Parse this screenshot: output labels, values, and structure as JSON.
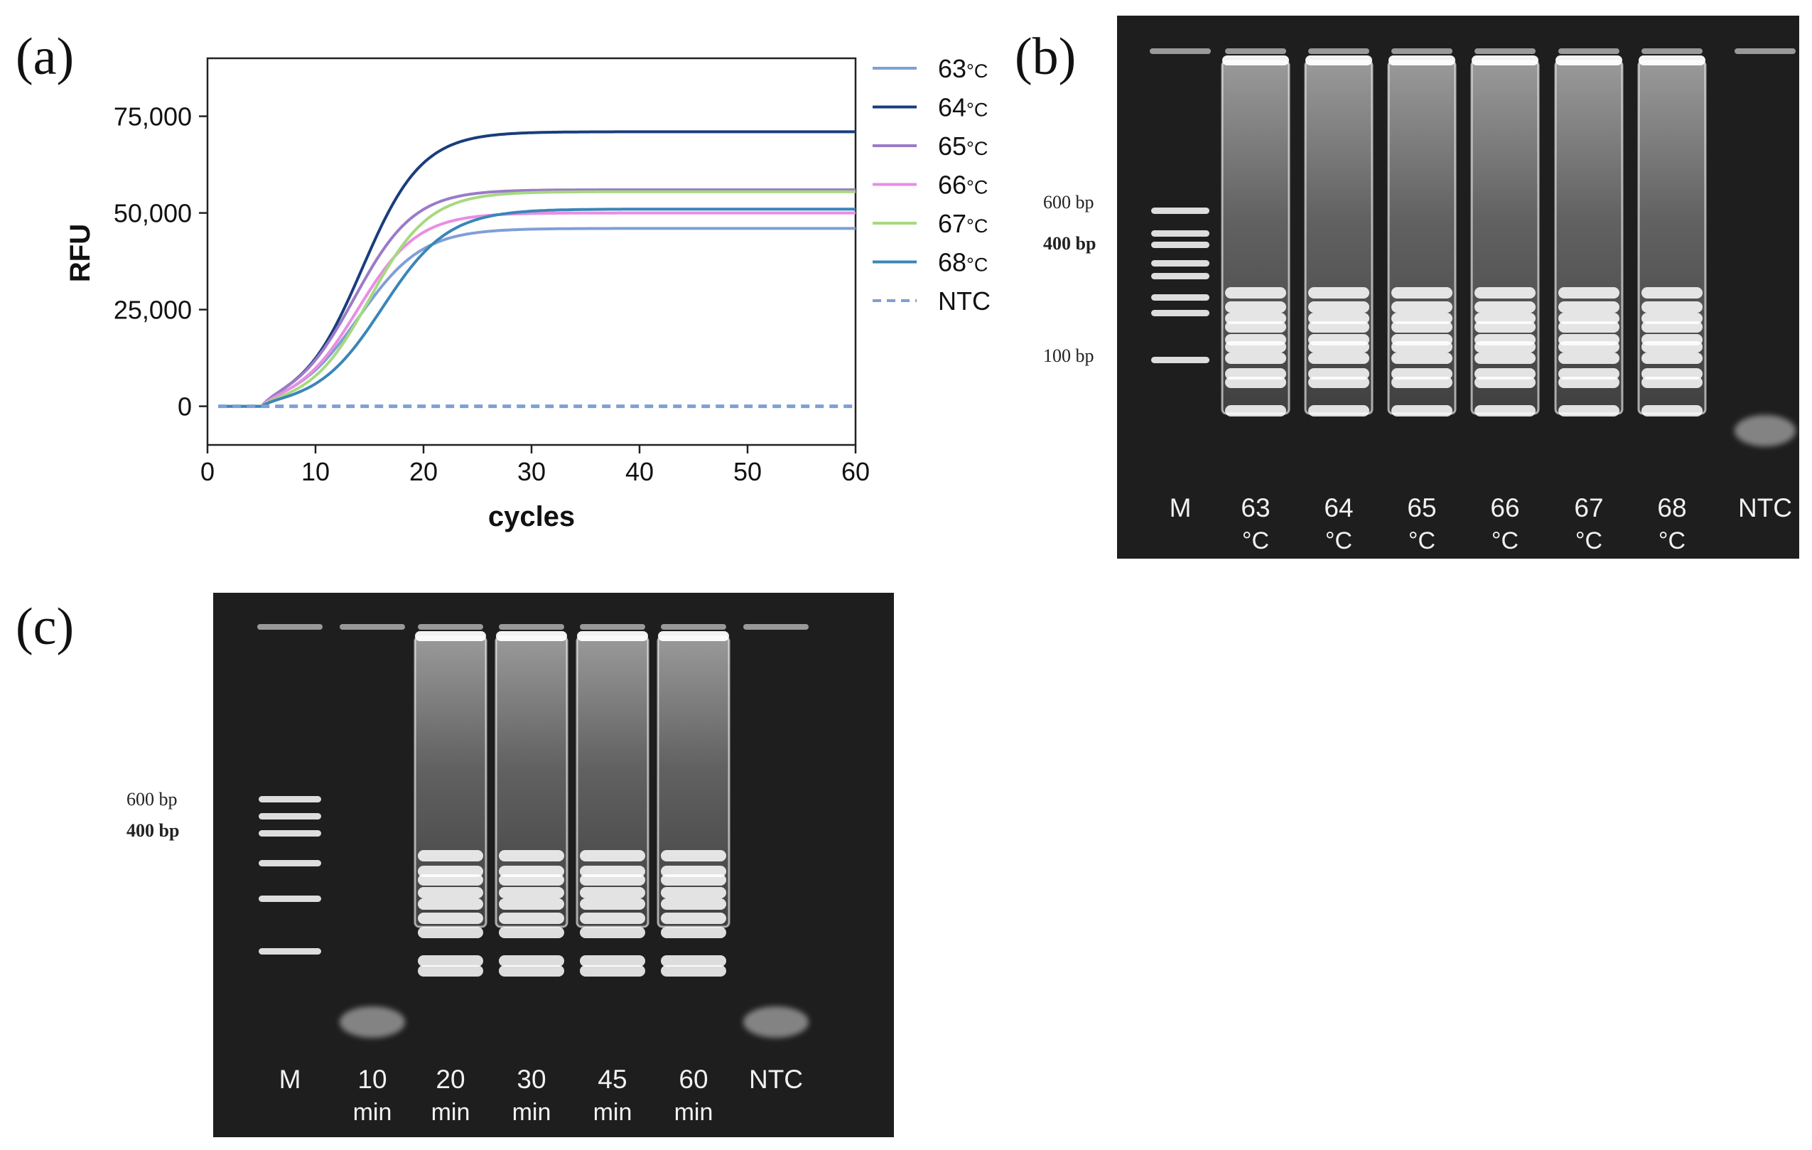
{
  "panels": {
    "a": "(a)",
    "b": "(b)",
    "c": "(c)"
  },
  "chart_data": {
    "type": "line",
    "title": "",
    "xlabel": "cycles",
    "ylabel": "RFU",
    "xlim": [
      0,
      60
    ],
    "ylim": [
      -10000,
      90000
    ],
    "x_ticks": [
      "0",
      "10",
      "20",
      "30",
      "40",
      "50",
      "60"
    ],
    "y_ticks": [
      "0",
      "25,000",
      "50,000",
      "75,000"
    ],
    "grid": false,
    "legend_position": "right",
    "series": [
      {
        "name": "63",
        "unit": "°C",
        "color": "#7f9fd6",
        "dashed": false,
        "plateau": 46000,
        "midpoint": 14.0,
        "steep": 0.34
      },
      {
        "name": "64",
        "unit": "°C",
        "color": "#1a3d7c",
        "dashed": false,
        "plateau": 71000,
        "midpoint": 14.3,
        "steep": 0.36
      },
      {
        "name": "65",
        "unit": "°C",
        "color": "#9a7bc8",
        "dashed": false,
        "plateau": 56000,
        "midpoint": 13.6,
        "steep": 0.36
      },
      {
        "name": "66",
        "unit": "°C",
        "color": "#e98ee3",
        "dashed": false,
        "plateau": 50000,
        "midpoint": 13.9,
        "steep": 0.36
      },
      {
        "name": "67",
        "unit": "°C",
        "color": "#a6d97f",
        "dashed": false,
        "plateau": 55500,
        "midpoint": 15.0,
        "steep": 0.36
      },
      {
        "name": "68",
        "unit": "°C",
        "color": "#3a86b8",
        "dashed": false,
        "plateau": 51000,
        "midpoint": 16.2,
        "steep": 0.33
      },
      {
        "name": "NTC",
        "unit": "",
        "color": "#7f9fd6",
        "dashed": true,
        "plateau": 0,
        "midpoint": 0,
        "steep": 0
      }
    ]
  },
  "gel_b": {
    "bp_labels": {
      "top": "600 bp",
      "mid": "400 bp",
      "low": "100 bp"
    },
    "lanes": [
      {
        "main": "M",
        "sub": ""
      },
      {
        "main": "63",
        "sub": "°C"
      },
      {
        "main": "64",
        "sub": "°C"
      },
      {
        "main": "65",
        "sub": "°C"
      },
      {
        "main": "66",
        "sub": "°C"
      },
      {
        "main": "67",
        "sub": "°C"
      },
      {
        "main": "68",
        "sub": "°C"
      },
      {
        "main": "NTC",
        "sub": ""
      }
    ]
  },
  "gel_c": {
    "bp_labels": {
      "top": "600 bp",
      "mid": "400 bp"
    },
    "lanes": [
      {
        "main": "M",
        "sub": ""
      },
      {
        "main": "10",
        "sub": "min"
      },
      {
        "main": "20",
        "sub": "min"
      },
      {
        "main": "30",
        "sub": "min"
      },
      {
        "main": "45",
        "sub": "min"
      },
      {
        "main": "60",
        "sub": "min"
      },
      {
        "main": "NTC",
        "sub": ""
      }
    ]
  }
}
